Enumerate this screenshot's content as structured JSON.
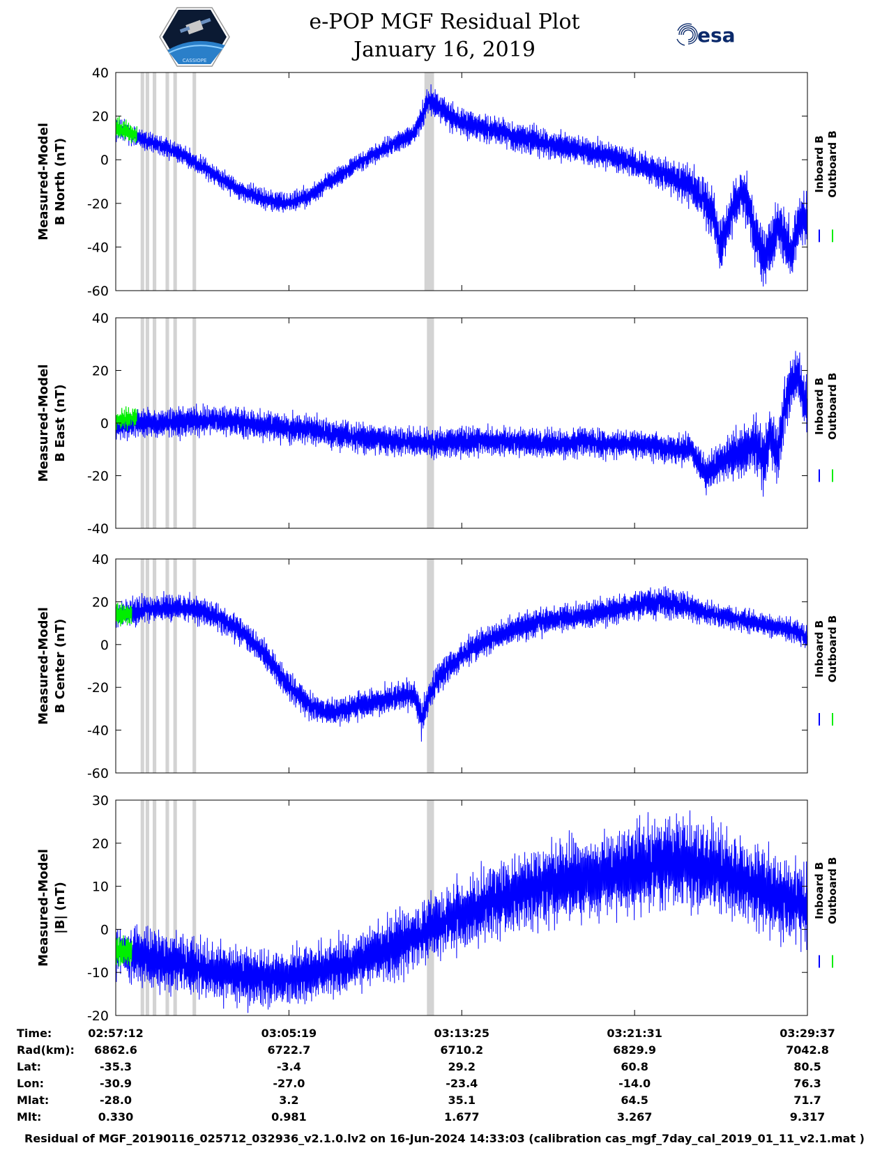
{
  "header": {
    "title": "e-POP MGF Residual Plot",
    "subtitle": "January 16, 2019",
    "left_logo": {
      "name": "cassiope-logo",
      "text": "CASSIOPE"
    },
    "right_logo": {
      "name": "esa-logo",
      "text": "esa"
    }
  },
  "colors": {
    "inboard": "#0000ff",
    "outboard": "#00ee00",
    "gap_band": "#d3d3d3",
    "axis": "#000000"
  },
  "chart_data": [
    {
      "type": "line",
      "panel": "north",
      "ylabel": [
        "Measured-Model",
        "B North (nT)"
      ],
      "ylim": [
        -60,
        40
      ],
      "yticks": [
        40,
        20,
        0,
        -20,
        -40,
        -60
      ],
      "xlim": [
        0,
        1945
      ],
      "xticks_s": [
        0,
        487,
        973,
        1459,
        1945
      ],
      "legend": [
        "Inboard B",
        "Outboard B"
      ],
      "legend_position": "right",
      "gray_bands_s": [
        [
          70,
          80
        ],
        [
          84,
          94
        ],
        [
          104,
          114
        ],
        [
          140,
          150
        ],
        [
          162,
          172
        ],
        [
          216,
          226
        ],
        [
          868,
          868
        ],
        [
          875,
          895
        ]
      ],
      "series": [
        {
          "name": "Inboard B",
          "x_s": [
            0,
            60,
            120,
            180,
            240,
            300,
            360,
            420,
            480,
            540,
            600,
            660,
            720,
            780,
            840,
            880,
            900,
            960,
            1020,
            1080,
            1140,
            1200,
            1260,
            1320,
            1380,
            1440,
            1500,
            1560,
            1620,
            1680,
            1700,
            1720,
            1740,
            1760,
            1780,
            1800,
            1820,
            1840,
            1860,
            1880,
            1900,
            1920,
            1945
          ],
          "mean": [
            15,
            10,
            7,
            3,
            -3,
            -9,
            -15,
            -18,
            -20,
            -17,
            -10,
            -4,
            2,
            7,
            12,
            27,
            25,
            18,
            15,
            13,
            10,
            8,
            6,
            4,
            2,
            -1,
            -4,
            -8,
            -12,
            -25,
            -40,
            -30,
            -20,
            -15,
            -20,
            -35,
            -45,
            -40,
            -30,
            -35,
            -42,
            -30,
            -25
          ],
          "amp": [
            6,
            5,
            5,
            5,
            5,
            5,
            5,
            5,
            5,
            5,
            5,
            5,
            5,
            5,
            5,
            8,
            8,
            7,
            7,
            7,
            7,
            7,
            7,
            7,
            7,
            7,
            7,
            8,
            10,
            12,
            12,
            12,
            12,
            12,
            14,
            16,
            14,
            14,
            14,
            14,
            14,
            14,
            14
          ]
        },
        {
          "name": "Outboard B",
          "x_s": [
            0,
            30,
            60
          ],
          "mean": [
            15,
            13,
            11
          ],
          "amp": [
            5,
            5,
            4
          ]
        }
      ]
    },
    {
      "type": "line",
      "panel": "east",
      "ylabel": [
        "Measured-Model",
        "B East (nT)"
      ],
      "ylim": [
        -40,
        40
      ],
      "yticks": [
        40,
        20,
        0,
        -20,
        -40
      ],
      "xlim": [
        0,
        1945
      ],
      "xticks_s": [
        0,
        487,
        973,
        1459,
        1945
      ],
      "legend": [
        "Inboard B",
        "Outboard B"
      ],
      "legend_position": "right",
      "gray_bands_s": [
        [
          70,
          80
        ],
        [
          84,
          94
        ],
        [
          104,
          114
        ],
        [
          140,
          150
        ],
        [
          162,
          172
        ],
        [
          216,
          226
        ],
        [
          875,
          895
        ]
      ],
      "series": [
        {
          "name": "Inboard B",
          "x_s": [
            0,
            60,
            120,
            180,
            240,
            300,
            360,
            420,
            480,
            540,
            600,
            660,
            720,
            780,
            840,
            900,
            960,
            1020,
            1080,
            1140,
            1200,
            1260,
            1320,
            1380,
            1440,
            1500,
            1560,
            1620,
            1660,
            1700,
            1740,
            1780,
            1800,
            1820,
            1840,
            1860,
            1880,
            1900,
            1920,
            1945
          ],
          "mean": [
            -2,
            0,
            0,
            0,
            1,
            1,
            0,
            -1,
            -2,
            -2,
            -4,
            -5,
            -6,
            -7,
            -7,
            -8,
            -7,
            -7,
            -7,
            -7,
            -8,
            -8,
            -7,
            -8,
            -8,
            -8,
            -10,
            -10,
            -20,
            -15,
            -12,
            -10,
            -8,
            -15,
            -5,
            -12,
            5,
            15,
            18,
            5
          ],
          "amp": [
            5,
            6,
            6,
            6,
            6,
            6,
            6,
            6,
            6,
            6,
            6,
            6,
            6,
            6,
            6,
            6,
            6,
            6,
            6,
            6,
            6,
            6,
            6,
            6,
            6,
            6,
            6,
            6,
            8,
            8,
            10,
            10,
            12,
            12,
            12,
            12,
            12,
            10,
            10,
            14
          ]
        },
        {
          "name": "Outboard B",
          "x_s": [
            0,
            30,
            60
          ],
          "mean": [
            1,
            2,
            2
          ],
          "amp": [
            4,
            4,
            4
          ]
        }
      ]
    },
    {
      "type": "line",
      "panel": "center",
      "ylabel": [
        "Measured-Model",
        "B Center (nT)"
      ],
      "ylim": [
        -60,
        40
      ],
      "yticks": [
        40,
        20,
        0,
        -20,
        -40,
        -60
      ],
      "xlim": [
        0,
        1945
      ],
      "xticks_s": [
        0,
        487,
        973,
        1459,
        1945
      ],
      "legend": [
        "Inboard B",
        "Outboard B"
      ],
      "legend_position": "right",
      "gray_bands_s": [
        [
          70,
          80
        ],
        [
          84,
          94
        ],
        [
          104,
          114
        ],
        [
          140,
          150
        ],
        [
          162,
          172
        ],
        [
          216,
          226
        ],
        [
          875,
          895
        ]
      ],
      "series": [
        {
          "name": "Inboard B",
          "x_s": [
            0,
            60,
            120,
            180,
            240,
            300,
            360,
            420,
            480,
            540,
            600,
            660,
            720,
            780,
            840,
            860,
            880,
            900,
            940,
            1000,
            1060,
            1120,
            1180,
            1240,
            1300,
            1360,
            1420,
            1480,
            1540,
            1600,
            1660,
            1720,
            1780,
            1840,
            1900,
            1945
          ],
          "mean": [
            14,
            16,
            17,
            17,
            16,
            12,
            5,
            -5,
            -18,
            -28,
            -32,
            -30,
            -27,
            -25,
            -23,
            -35,
            -25,
            -18,
            -10,
            -2,
            3,
            7,
            10,
            12,
            13,
            15,
            17,
            19,
            20,
            18,
            15,
            13,
            11,
            9,
            7,
            3
          ],
          "amp": [
            6,
            7,
            7,
            7,
            7,
            7,
            7,
            7,
            7,
            7,
            7,
            7,
            7,
            7,
            8,
            10,
            9,
            8,
            7,
            7,
            7,
            7,
            7,
            7,
            7,
            7,
            7,
            7,
            8,
            7,
            6,
            6,
            6,
            6,
            6,
            6
          ]
        },
        {
          "name": "Outboard B",
          "x_s": [
            0,
            15,
            30,
            45
          ],
          "mean": [
            14,
            14,
            14,
            14
          ],
          "amp": [
            5,
            5,
            5,
            5
          ]
        }
      ]
    },
    {
      "type": "line",
      "panel": "magnitude",
      "ylabel": [
        "Measured-Model",
        "|B| (nT)"
      ],
      "ylim": [
        -20,
        30
      ],
      "yticks": [
        30,
        20,
        10,
        0,
        -10,
        -20
      ],
      "xlim": [
        0,
        1945
      ],
      "xticks_s": [
        0,
        487,
        973,
        1459,
        1945
      ],
      "legend": [
        "Inboard B",
        "Outboard B"
      ],
      "legend_position": "right",
      "gray_bands_s": [
        [
          70,
          80
        ],
        [
          84,
          94
        ],
        [
          104,
          114
        ],
        [
          140,
          150
        ],
        [
          162,
          172
        ],
        [
          216,
          226
        ],
        [
          875,
          895
        ]
      ],
      "series": [
        {
          "name": "Inboard B",
          "x_s": [
            0,
            60,
            120,
            180,
            240,
            300,
            360,
            420,
            480,
            540,
            600,
            660,
            720,
            780,
            840,
            900,
            960,
            1020,
            1080,
            1140,
            1200,
            1260,
            1320,
            1380,
            1440,
            1500,
            1560,
            1620,
            1680,
            1740,
            1800,
            1860,
            1920,
            1945
          ],
          "mean": [
            -5,
            -6,
            -7,
            -8,
            -9,
            -10,
            -11,
            -11,
            -11,
            -10,
            -9,
            -8,
            -6,
            -4,
            -2,
            1,
            3,
            5,
            7,
            9,
            10,
            11,
            12,
            13,
            14,
            15,
            16,
            15,
            14,
            12,
            10,
            8,
            6,
            5
          ],
          "amp": [
            6,
            7,
            7,
            7,
            7,
            7,
            7,
            7,
            7,
            7,
            7,
            7,
            7,
            8,
            8,
            8,
            9,
            9,
            9,
            9,
            10,
            10,
            10,
            10,
            11,
            11,
            11,
            11,
            11,
            11,
            10,
            10,
            10,
            10
          ]
        },
        {
          "name": "Outboard B",
          "x_s": [
            0,
            15,
            30,
            45
          ],
          "mean": [
            -5,
            -5,
            -5,
            -5
          ],
          "amp": [
            4,
            4,
            4,
            4
          ]
        }
      ]
    }
  ],
  "info_table": {
    "row_labels": [
      "Time:",
      "Rad(km):",
      "Lat:",
      "Lon:",
      "Mlat:",
      "Mlt:"
    ],
    "columns": [
      [
        "02:57:12",
        "6862.6",
        "-35.3",
        "-30.9",
        "-28.0",
        "0.330"
      ],
      [
        "03:05:19",
        "6722.7",
        "-3.4",
        "-27.0",
        "3.2",
        "0.981"
      ],
      [
        "03:13:25",
        "6710.2",
        "29.2",
        "-23.4",
        "35.1",
        "1.677"
      ],
      [
        "03:21:31",
        "6829.9",
        "60.8",
        "-14.0",
        "64.5",
        "3.267"
      ],
      [
        "03:29:37",
        "7042.8",
        "80.5",
        "76.3",
        "71.7",
        "9.317"
      ]
    ]
  },
  "footer": "Residual of MGF_20190116_025712_032936_v2.1.0.lv2 on 16-Jun-2024 14:33:03 (calibration cas_mgf_7day_cal_2019_01_11_v2.1.mat )"
}
